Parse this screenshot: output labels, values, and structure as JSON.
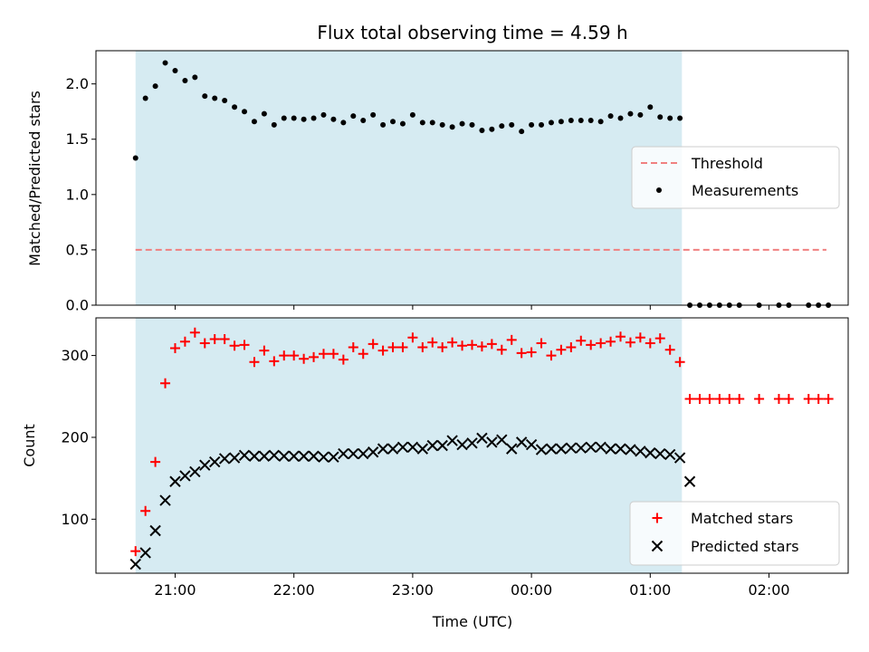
{
  "chart_data": [
    {
      "type": "scatter",
      "title": "Flux total observing time = 4.59 h",
      "xlabel": "",
      "ylabel": "Matched/Predicted stars",
      "ylim": [
        0,
        2.3
      ],
      "xlim": [
        "20:20",
        "02:40"
      ],
      "yticks": [
        "0.0",
        "0.5",
        "1.0",
        "1.5",
        "2.0"
      ],
      "shaded_span": [
        "20:40",
        "01:16"
      ],
      "shade_color": "#add8e6",
      "legend_position": "center-right",
      "threshold": {
        "name": "Threshold",
        "value": 0.5,
        "x": [
          "20:40",
          "02:29"
        ],
        "color": "#f08080"
      },
      "series": [
        {
          "name": "Measurements",
          "color": "#000000",
          "x": [
            "20:40",
            "20:45",
            "20:50",
            "20:55",
            "21:00",
            "21:05",
            "21:10",
            "21:15",
            "21:20",
            "21:25",
            "21:30",
            "21:35",
            "21:40",
            "21:45",
            "21:50",
            "21:55",
            "22:00",
            "22:05",
            "22:10",
            "22:15",
            "22:20",
            "22:25",
            "22:30",
            "22:35",
            "22:40",
            "22:45",
            "22:50",
            "22:55",
            "23:00",
            "23:05",
            "23:10",
            "23:15",
            "23:20",
            "23:25",
            "23:30",
            "23:35",
            "23:40",
            "23:45",
            "23:50",
            "23:55",
            "00:00",
            "00:05",
            "00:10",
            "00:15",
            "00:20",
            "00:25",
            "00:30",
            "00:35",
            "00:40",
            "00:45",
            "00:50",
            "00:55",
            "01:00",
            "01:05",
            "01:10",
            "01:15",
            "01:20",
            "01:25",
            "01:30",
            "01:35",
            "01:40",
            "01:45",
            "01:55",
            "02:05",
            "02:10",
            "02:20",
            "02:25",
            "02:30"
          ],
          "y": [
            1.33,
            1.87,
            1.98,
            2.19,
            2.12,
            2.03,
            2.06,
            1.89,
            1.87,
            1.85,
            1.79,
            1.75,
            1.66,
            1.73,
            1.63,
            1.69,
            1.69,
            1.68,
            1.69,
            1.72,
            1.68,
            1.65,
            1.71,
            1.67,
            1.72,
            1.63,
            1.66,
            1.64,
            1.72,
            1.65,
            1.65,
            1.63,
            1.61,
            1.64,
            1.63,
            1.58,
            1.59,
            1.62,
            1.63,
            1.57,
            1.63,
            1.63,
            1.65,
            1.66,
            1.67,
            1.67,
            1.67,
            1.66,
            1.71,
            1.69,
            1.73,
            1.72,
            1.79,
            1.7,
            1.69,
            1.69,
            0,
            0,
            0,
            0,
            0,
            0,
            0,
            0,
            0,
            0,
            0,
            0
          ]
        }
      ]
    },
    {
      "type": "scatter",
      "title": "",
      "xlabel": "Time (UTC)",
      "ylabel": "Count",
      "ylim": [
        34,
        346
      ],
      "xlim": [
        "20:20",
        "02:40"
      ],
      "xticks": [
        "21:00",
        "22:00",
        "23:00",
        "00:00",
        "01:00",
        "02:00"
      ],
      "yticks": [
        "100",
        "200",
        "300"
      ],
      "shaded_span": [
        "20:40",
        "01:16"
      ],
      "shade_color": "#add8e6",
      "legend_position": "bottom-right",
      "series": [
        {
          "name": "Matched stars",
          "color": "#ff0000",
          "marker": "plus",
          "x": [
            "20:40",
            "20:45",
            "20:50",
            "20:55",
            "21:00",
            "21:05",
            "21:10",
            "21:15",
            "21:20",
            "21:25",
            "21:30",
            "21:35",
            "21:40",
            "21:45",
            "21:50",
            "21:55",
            "22:00",
            "22:05",
            "22:10",
            "22:15",
            "22:20",
            "22:25",
            "22:30",
            "22:35",
            "22:40",
            "22:45",
            "22:50",
            "22:55",
            "23:00",
            "23:05",
            "23:10",
            "23:15",
            "23:20",
            "23:25",
            "23:30",
            "23:35",
            "23:40",
            "23:45",
            "23:50",
            "23:55",
            "00:00",
            "00:05",
            "00:10",
            "00:15",
            "00:20",
            "00:25",
            "00:30",
            "00:35",
            "00:40",
            "00:45",
            "00:50",
            "00:55",
            "01:00",
            "01:05",
            "01:10",
            "01:15",
            "01:20",
            "01:25",
            "01:30",
            "01:35",
            "01:40",
            "01:45",
            "01:55",
            "02:05",
            "02:10",
            "02:20",
            "02:25",
            "02:30"
          ],
          "y": [
            61,
            110,
            170,
            266,
            309,
            317,
            328,
            315,
            320,
            320,
            312,
            313,
            292,
            306,
            293,
            300,
            300,
            296,
            298,
            302,
            302,
            295,
            310,
            302,
            314,
            306,
            310,
            310,
            322,
            310,
            316,
            310,
            316,
            312,
            313,
            311,
            314,
            307,
            319,
            303,
            304,
            315,
            300,
            307,
            310,
            318,
            313,
            315,
            317,
            323,
            316,
            322,
            315,
            321,
            307,
            292,
            247,
            247,
            247,
            247,
            247,
            247,
            247,
            247,
            247,
            247,
            247,
            247
          ]
        },
        {
          "name": "Predicted stars",
          "color": "#000000",
          "marker": "x",
          "x": [
            "20:40",
            "20:45",
            "20:50",
            "20:55",
            "21:00",
            "21:05",
            "21:10",
            "21:15",
            "21:20",
            "21:25",
            "21:30",
            "21:35",
            "21:40",
            "21:45",
            "21:50",
            "21:55",
            "22:00",
            "22:05",
            "22:10",
            "22:15",
            "22:20",
            "22:25",
            "22:30",
            "22:35",
            "22:40",
            "22:45",
            "22:50",
            "22:55",
            "23:00",
            "23:05",
            "23:10",
            "23:15",
            "23:20",
            "23:25",
            "23:30",
            "23:35",
            "23:40",
            "23:45",
            "23:50",
            "23:55",
            "00:00",
            "00:05",
            "00:10",
            "00:15",
            "00:20",
            "00:25",
            "00:30",
            "00:35",
            "00:40",
            "00:45",
            "00:50",
            "00:55",
            "01:00",
            "01:05",
            "01:10",
            "01:15",
            "01:20"
          ],
          "y": [
            45,
            59,
            86,
            123,
            146,
            153,
            158,
            166,
            170,
            174,
            175,
            178,
            177,
            177,
            178,
            177,
            177,
            177,
            177,
            176,
            176,
            180,
            180,
            180,
            182,
            186,
            186,
            188,
            188,
            186,
            190,
            190,
            196,
            191,
            193,
            199,
            194,
            197,
            186,
            194,
            191,
            185,
            186,
            186,
            187,
            187,
            188,
            188,
            186,
            186,
            185,
            183,
            181,
            180,
            179,
            175,
            146
          ]
        }
      ]
    }
  ]
}
